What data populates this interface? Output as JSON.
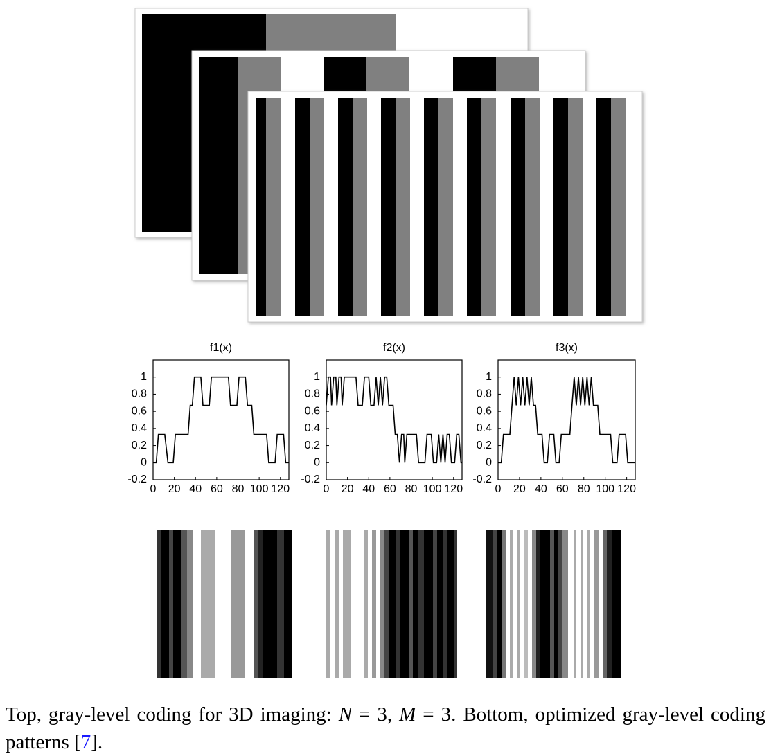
{
  "chart_data": [
    {
      "type": "line",
      "title": "f1(x)",
      "x": [
        0,
        3,
        5,
        11,
        14,
        19,
        21,
        33,
        35,
        37,
        39,
        45,
        47,
        53,
        55,
        71,
        73,
        79,
        81,
        87,
        89,
        93,
        95,
        107,
        109,
        115,
        117,
        123,
        125,
        128
      ],
      "values": [
        0,
        0,
        0.33,
        0.33,
        0,
        0,
        0.33,
        0.33,
        0.67,
        0.67,
        1,
        1,
        0.67,
        0.67,
        1,
        1,
        0.67,
        0.67,
        1,
        1,
        0.67,
        0.67,
        0.33,
        0.33,
        0,
        0,
        0.33,
        0.33,
        0,
        0
      ],
      "xlim": [
        0,
        128
      ],
      "ylim": [
        -0.2,
        1.2
      ],
      "xticks": [
        0,
        20,
        40,
        60,
        80,
        100,
        120
      ],
      "yticks": [
        -0.2,
        0,
        0.2,
        0.4,
        0.6,
        0.8,
        1
      ],
      "color": "#000000"
    },
    {
      "type": "line",
      "title": "f2(x)",
      "x": [
        0,
        2,
        4,
        5,
        7,
        9,
        10,
        12,
        14,
        15,
        17,
        28,
        30,
        34,
        36,
        40,
        42,
        45,
        47,
        49,
        51,
        53,
        55,
        57,
        59,
        63,
        65,
        67,
        69,
        71,
        73,
        74,
        76,
        85,
        87,
        93,
        95,
        99,
        101,
        104,
        106,
        108,
        110,
        112,
        114,
        116,
        118,
        121,
        123,
        125,
        127,
        128
      ],
      "values": [
        0.67,
        1,
        1,
        0.67,
        1,
        1,
        0.67,
        1,
        1,
        0.67,
        1,
        1,
        0.67,
        0.67,
        1,
        1,
        0.67,
        0.67,
        1,
        0.67,
        1,
        0.67,
        1,
        1,
        0.67,
        0.67,
        0.33,
        0.33,
        0,
        0.33,
        0.33,
        0,
        0.33,
        0.33,
        0,
        0,
        0.33,
        0.33,
        0,
        0,
        0.33,
        0,
        0.33,
        0,
        0.33,
        0.33,
        0,
        0,
        0.33,
        0.33,
        0,
        0
      ],
      "xlim": [
        0,
        128
      ],
      "ylim": [
        -0.2,
        1.2
      ],
      "xticks": [
        0,
        20,
        40,
        60,
        80,
        100,
        120
      ],
      "yticks": [
        -0.2,
        0,
        0.2,
        0.4,
        0.6,
        0.8,
        1
      ],
      "color": "#000000"
    },
    {
      "type": "line",
      "title": "f3(x)",
      "x": [
        0,
        3,
        5,
        11,
        13,
        15,
        17,
        19,
        21,
        23,
        25,
        27,
        29,
        31,
        33,
        35,
        37,
        41,
        43,
        46,
        48,
        52,
        54,
        57,
        59,
        67,
        69,
        71,
        73,
        75,
        77,
        79,
        81,
        83,
        85,
        87,
        89,
        93,
        95,
        105,
        107,
        111,
        113,
        119,
        121,
        128
      ],
      "values": [
        0,
        0,
        0.33,
        0.33,
        0.67,
        1,
        0.67,
        1,
        0.67,
        1,
        0.67,
        1,
        0.67,
        1,
        0.67,
        0.67,
        0.33,
        0.33,
        0,
        0,
        0.33,
        0.33,
        0,
        0,
        0.33,
        0.33,
        0.67,
        1,
        0.67,
        1,
        0.67,
        1,
        0.67,
        1,
        0.67,
        1,
        0.67,
        0.67,
        0.33,
        0.33,
        0,
        0,
        0.33,
        0.33,
        0,
        0
      ],
      "xlim": [
        0,
        128
      ],
      "ylim": [
        -0.2,
        1.2
      ],
      "xticks": [
        0,
        20,
        40,
        60,
        80,
        100,
        120
      ],
      "yticks": [
        -0.2,
        0,
        0.2,
        0.4,
        0.6,
        0.8,
        1
      ],
      "color": "#000000"
    }
  ],
  "caption": {
    "segments": [
      "Top, gray-level coding for 3D imaging: ",
      "N",
      " = 3, ",
      "M",
      " = 3. Bottom, optimized gray-level coding patterns [",
      "7",
      "]."
    ]
  }
}
